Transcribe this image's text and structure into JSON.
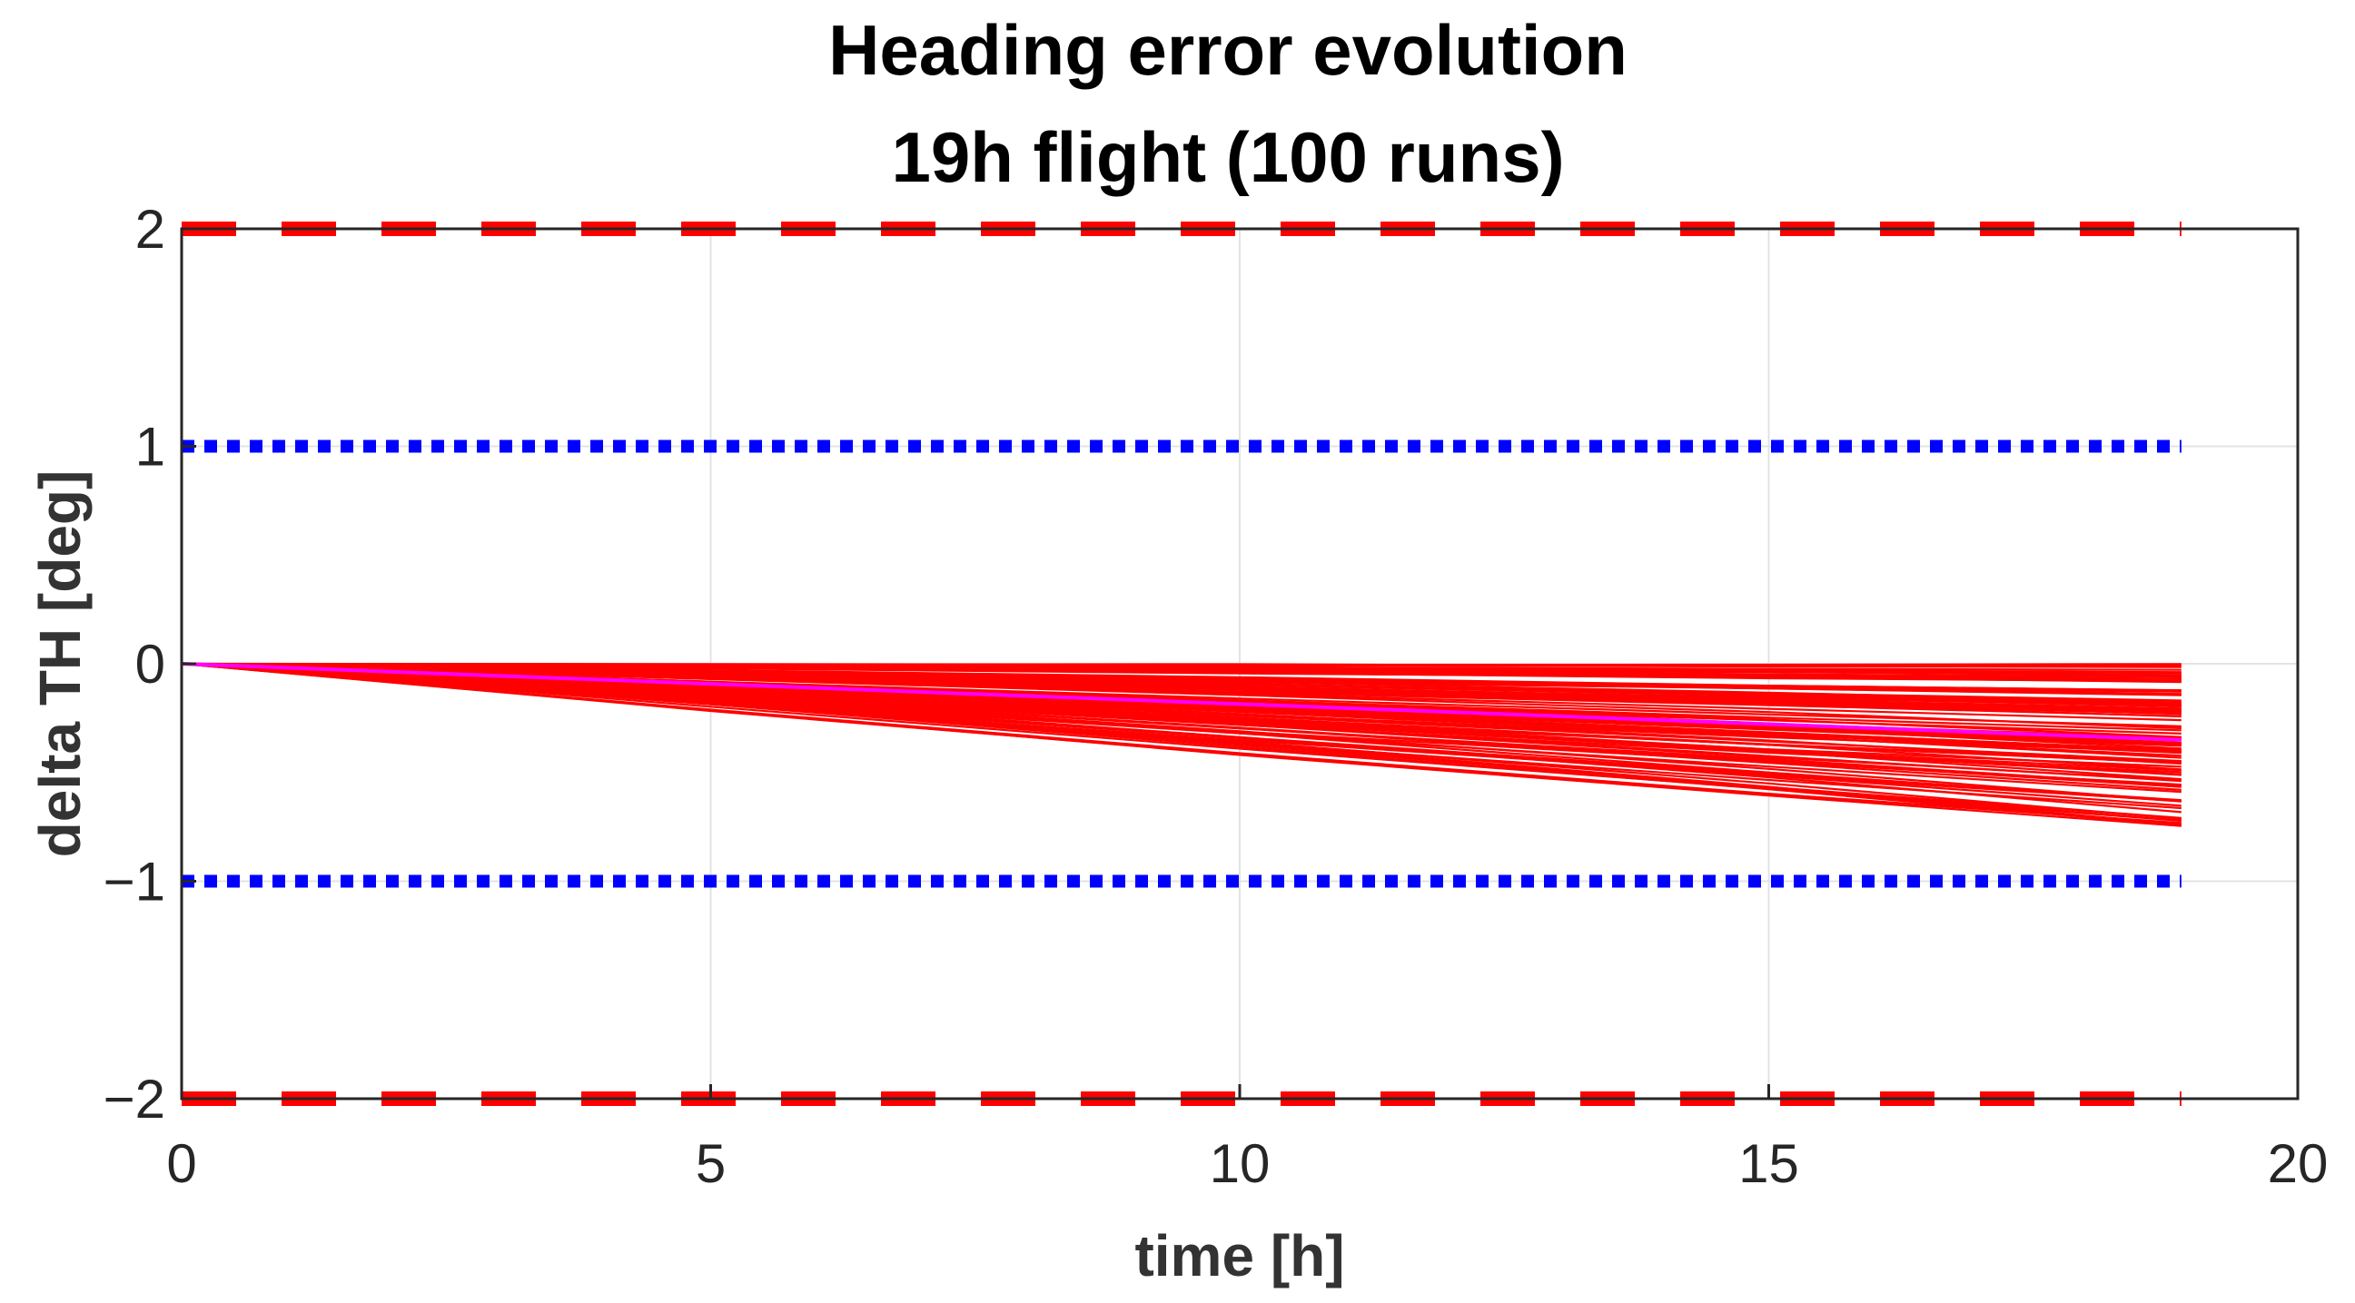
{
  "chart_data": {
    "type": "line",
    "title": [
      "Heading error evolution",
      "19h flight (100 runs)"
    ],
    "xlabel": "time [h]",
    "ylabel": "delta TH [deg]",
    "xlim": [
      0,
      20
    ],
    "ylim": [
      -2,
      2
    ],
    "xticks": [
      0,
      5,
      10,
      15,
      20
    ],
    "xtick_labels": [
      "0",
      "5",
      "10",
      "15",
      "20"
    ],
    "yticks": [
      2,
      1,
      0,
      -1,
      -2
    ],
    "ytick_labels": [
      "2",
      "1",
      "0",
      "−1",
      "−2"
    ],
    "grid": true,
    "runs": {
      "count": 100,
      "color": "#ff0000",
      "x": [
        0,
        5,
        10,
        15,
        18.9
      ],
      "final_value_range": [
        -0.75,
        0.0
      ]
    },
    "mean": {
      "color": "#ff00ff",
      "x": [
        0,
        18.9
      ],
      "y": [
        0,
        -0.35
      ]
    },
    "reference_lines": [
      {
        "y": 2,
        "x": [
          0,
          18.9
        ],
        "style": "dashed",
        "color": "#ff0000"
      },
      {
        "y": -2,
        "x": [
          0,
          18.9
        ],
        "style": "dashed",
        "color": "#ff0000"
      },
      {
        "y": 1,
        "x": [
          0,
          18.9
        ],
        "style": "dotted",
        "color": "#0000ff"
      },
      {
        "y": -1,
        "x": [
          0,
          18.9
        ],
        "style": "dotted",
        "color": "#0000ff"
      }
    ]
  }
}
